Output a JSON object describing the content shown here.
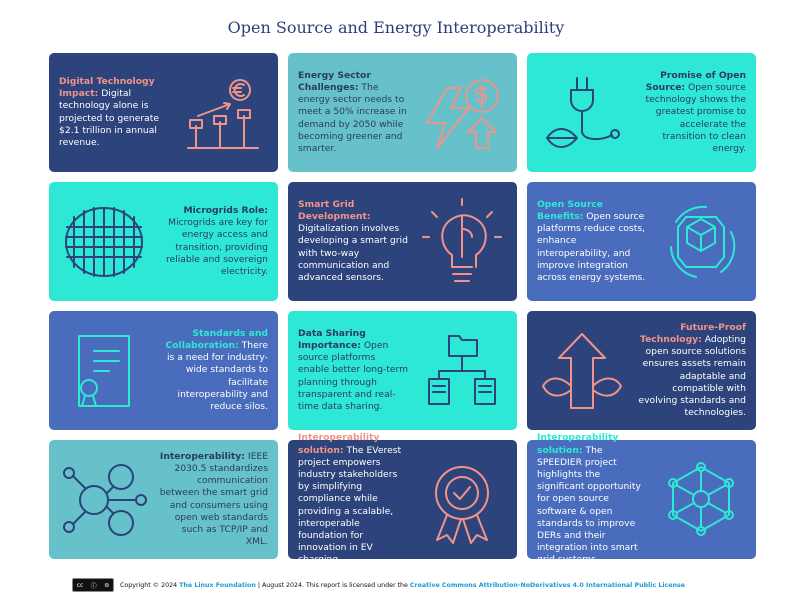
{
  "title": "Open Source and Energy Interoperability",
  "colors": {
    "navy": "#2c437b",
    "teal": "#67c1cb",
    "aqua": "#2ee8d6",
    "blue": "#4a6cbd",
    "salmon": "#f0948a"
  },
  "cards": [
    {
      "heading": "Digital Technology Impact:",
      "body": " Digital technology alone is projected to generate $2.1 trillion in annual revenue.",
      "icon": "euro-growth-plants-icon"
    },
    {
      "heading": "Energy Sector Challenges:",
      "body": " The energy sector needs to meet a 50% increase in demand by 2050 while becoming greener and smarter.",
      "icon": "lightning-dollar-up-icon"
    },
    {
      "heading": "Promise of Open Source:",
      "body": " Open source technology shows the greatest promise to accelerate the transition to clean energy.",
      "icon": "plug-leaf-icon"
    },
    {
      "heading": "Microgrids Role:",
      "body": " Microgrids are key for energy access and transition, providing reliable and sovereign electricity.",
      "icon": "grid-mesh-icon"
    },
    {
      "heading": "Smart Grid Development:",
      "body": " Digitalization involves developing a smart grid with two-way communication and advanced sensors.",
      "icon": "lightbulb-brain-icon"
    },
    {
      "heading": "Open Source Benefits:",
      "body": " Open source platforms reduce costs, enhance interoperability, and improve integration across energy systems.",
      "icon": "gear-cube-cycle-icon"
    },
    {
      "heading": "Standards and Collaboration:",
      "body": " There is a need for industry-wide standards to facilitate interoperability and reduce silos.",
      "icon": "certificate-icon"
    },
    {
      "heading": "Data Sharing Importance:",
      "body": " Open source platforms enable better long-term planning through transparent and real-time data sharing.",
      "icon": "folder-hierarchy-icon"
    },
    {
      "heading": "Future-Proof Technology:",
      "body": " Adopting open source solutions ensures assets remain adaptable and compatible with evolving standards and technologies.",
      "icon": "arrow-up-leaves-icon"
    },
    {
      "heading": "Interoperability:",
      "body": " IEEE 2030.5 standardizes communication between the smart grid and consumers using open web standards such as TCP/IP and XML.",
      "icon": "user-network-icon"
    },
    {
      "heading": "Interoperability solution:",
      "body": " The EVerest project empowers industry stakeholders by simplifying compliance while providing a scalable, interoperable foundation for innovation in EV charging.",
      "icon": "award-badge-icon"
    },
    {
      "heading": "Interoperability solution:",
      "body": " The SPEEDIER project highlights the significant opportunity for open source software & open standards to improve DERs and their integration into smart grid systems.",
      "icon": "hexagon-network-icon"
    }
  ],
  "footer": {
    "cc_badge": "cc by nd",
    "pre": "Copyright © 2024 ",
    "org": "The Linux Foundation",
    "mid": " | August 2024. This report is licensed under the ",
    "license": "Creative Commons Attribution-NoDerivatives 4.0 International Public License"
  }
}
